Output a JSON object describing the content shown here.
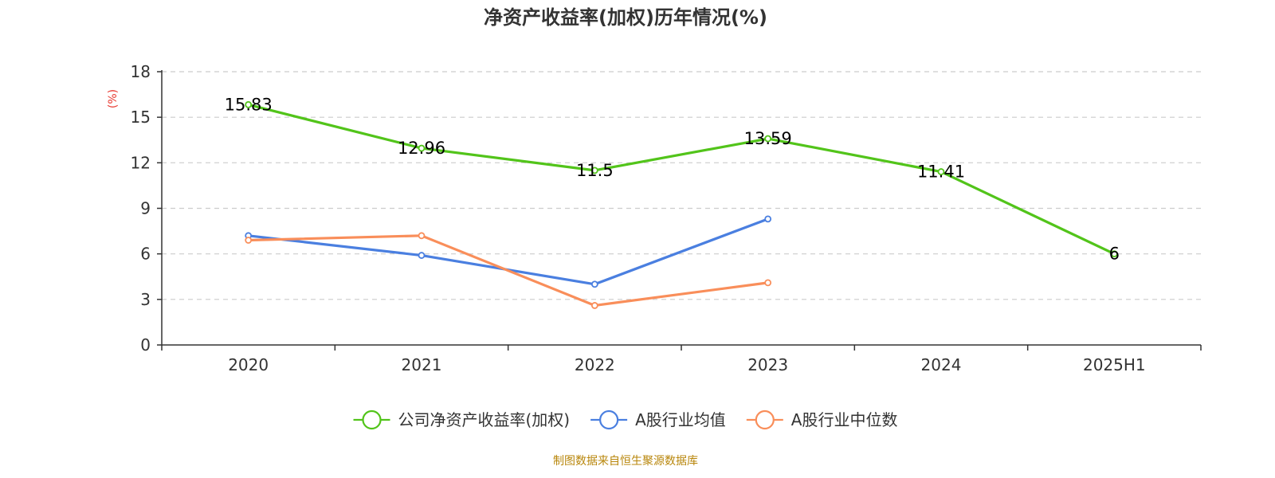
{
  "chart_data": {
    "type": "line",
    "title": "净资产收益率(加权)历年情况(%)",
    "ylabel": "(%)",
    "xlabel": "",
    "categories": [
      "2020",
      "2021",
      "2022",
      "2023",
      "2024",
      "2025H1"
    ],
    "ylim": [
      0,
      18
    ],
    "yticks": [
      0,
      3,
      6,
      9,
      12,
      15,
      18
    ],
    "grid": true,
    "legend_position": "bottom",
    "series": [
      {
        "name": "公司净资产收益率(加权)",
        "color": "#52c41a",
        "values": [
          15.83,
          12.96,
          11.5,
          13.59,
          11.41,
          6
        ],
        "labels": [
          "15.83",
          "12.96",
          "11.5",
          "13.59",
          "11.41",
          "6"
        ]
      },
      {
        "name": "A股行业均值",
        "color": "#4a7fe0",
        "values": [
          7.2,
          5.9,
          4.0,
          8.3,
          null,
          null
        ]
      },
      {
        "name": "A股行业中位数",
        "color": "#f98e5a",
        "values": [
          6.9,
          7.2,
          2.6,
          4.1,
          null,
          null
        ]
      }
    ]
  },
  "source_note": "制图数据来自恒生聚源数据库"
}
